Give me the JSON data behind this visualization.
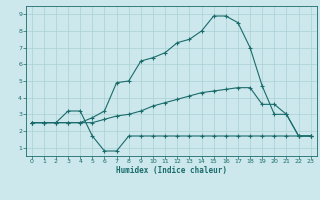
{
  "xlabel": "Humidex (Indice chaleur)",
  "xlim": [
    -0.5,
    23.5
  ],
  "ylim": [
    0.5,
    9.5
  ],
  "yticks": [
    1,
    2,
    3,
    4,
    5,
    6,
    7,
    8,
    9
  ],
  "xticks": [
    0,
    1,
    2,
    3,
    4,
    5,
    6,
    7,
    8,
    9,
    10,
    11,
    12,
    13,
    14,
    15,
    16,
    17,
    18,
    19,
    20,
    21,
    22,
    23
  ],
  "bg_color": "#cce8ec",
  "line_color": "#1a6b6b",
  "grid_color": "#aad0d4",
  "line1_x": [
    0,
    1,
    2,
    3,
    4,
    5,
    6,
    7,
    8,
    9,
    10,
    11,
    12,
    13,
    14,
    15,
    16,
    17,
    18,
    19,
    20,
    21,
    22,
    23
  ],
  "line1_y": [
    2.5,
    2.5,
    2.5,
    3.2,
    3.2,
    1.7,
    0.8,
    0.8,
    1.7,
    1.7,
    1.7,
    1.7,
    1.7,
    1.7,
    1.7,
    1.7,
    1.7,
    1.7,
    1.7,
    1.7,
    1.7,
    1.7,
    1.7,
    1.7
  ],
  "line2_x": [
    0,
    1,
    2,
    3,
    4,
    5,
    6,
    7,
    8,
    9,
    10,
    11,
    12,
    13,
    14,
    15,
    16,
    17,
    18,
    19,
    20,
    21,
    22,
    23
  ],
  "line2_y": [
    2.5,
    2.5,
    2.5,
    2.5,
    2.5,
    2.8,
    3.2,
    4.9,
    5.0,
    6.2,
    6.4,
    6.7,
    7.3,
    7.5,
    8.0,
    8.9,
    8.9,
    8.5,
    7.0,
    4.7,
    3.0,
    3.0,
    1.7,
    1.7
  ],
  "line3_x": [
    0,
    1,
    2,
    3,
    4,
    5,
    6,
    7,
    8,
    9,
    10,
    11,
    12,
    13,
    14,
    15,
    16,
    17,
    18,
    19,
    20,
    21,
    22,
    23
  ],
  "line3_y": [
    2.5,
    2.5,
    2.5,
    2.5,
    2.5,
    2.5,
    2.7,
    2.9,
    3.0,
    3.2,
    3.5,
    3.7,
    3.9,
    4.1,
    4.3,
    4.4,
    4.5,
    4.6,
    4.6,
    3.6,
    3.6,
    3.0,
    1.7,
    1.7
  ]
}
